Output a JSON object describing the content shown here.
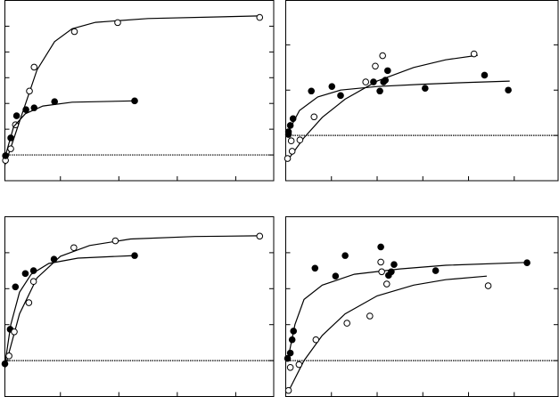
{
  "chart_data": [
    {
      "type": "scatter",
      "xlim": [
        0.05,
        4.65
      ],
      "ylim": [
        0,
        7
      ],
      "xticks": [
        1,
        2,
        3,
        4
      ],
      "yticks": [
        1,
        2,
        3,
        4,
        5,
        6
      ],
      "baseline": 1,
      "series": [
        {
          "marker": "open",
          "color": "#000000",
          "x": [
            0.06,
            0.15,
            0.23,
            0.47,
            0.55,
            1.24,
            1.98,
            4.41
          ],
          "values": [
            0.79,
            1.24,
            2.17,
            3.48,
            4.41,
            5.79,
            6.14,
            6.34
          ],
          "fit_x": [
            0.05,
            0.3,
            0.6,
            0.9,
            1.2,
            1.6,
            2.5,
            4.4
          ],
          "fit_y": [
            0.6,
            2.3,
            4.3,
            5.4,
            5.9,
            6.15,
            6.3,
            6.4
          ]
        },
        {
          "marker": "filled",
          "color": "#000000",
          "x": [
            0.06,
            0.15,
            0.25,
            0.41,
            0.55,
            0.9,
            2.27
          ],
          "values": [
            0.97,
            1.66,
            2.52,
            2.76,
            2.83,
            3.07,
            3.1
          ],
          "fit_x": [
            0.05,
            0.2,
            0.4,
            0.7,
            1.2,
            2.27
          ],
          "fit_y": [
            0.9,
            2.1,
            2.6,
            2.9,
            3.05,
            3.1
          ]
        }
      ]
    },
    {
      "type": "scatter",
      "xlim": [
        0,
        5.96
      ],
      "ylim": [
        0,
        3.98
      ],
      "xticks": [
        1,
        2,
        3,
        4,
        5
      ],
      "yticks": [
        1,
        2,
        3
      ],
      "baseline": 1,
      "series": [
        {
          "marker": "filled",
          "color": "#000000",
          "x": [
            0.06,
            0.06,
            0.1,
            0.16,
            0.56,
            1.01,
            1.2,
            1.92,
            2.14,
            2.18,
            2.06,
            2.23,
            3.05,
            4.35,
            4.87
          ],
          "values": [
            1.08,
            1.02,
            1.22,
            1.37,
            1.98,
            2.08,
            1.88,
            2.18,
            2.18,
            2.22,
            1.98,
            2.43,
            2.04,
            2.33,
            2.0
          ],
          "fit_x": [
            0.04,
            0.3,
            0.7,
            1.2,
            2,
            3,
            4,
            4.9
          ],
          "fit_y": [
            1.05,
            1.55,
            1.85,
            2.0,
            2.08,
            2.13,
            2.17,
            2.2
          ]
        },
        {
          "marker": "open",
          "color": "#000000",
          "x": [
            0.04,
            0.14,
            0.12,
            0.31,
            0.62,
            1.75,
            1.96,
            2.12,
            4.12
          ],
          "values": [
            0.49,
            0.65,
            0.88,
            0.9,
            1.41,
            2.18,
            2.53,
            2.76,
            2.8
          ],
          "fit_x": [
            0.04,
            0.4,
            0.8,
            1.3,
            2,
            2.8,
            3.5,
            4.2
          ],
          "fit_y": [
            0.45,
            0.95,
            1.4,
            1.8,
            2.2,
            2.5,
            2.67,
            2.77
          ]
        }
      ]
    },
    {
      "type": "scatter",
      "xlim": [
        0.05,
        4.65
      ],
      "ylim": [
        0,
        5
      ],
      "xticks": [
        1,
        2,
        3,
        4
      ],
      "yticks": [
        1,
        2,
        3,
        4
      ],
      "baseline": 1,
      "series": [
        {
          "marker": "filled",
          "color": "#000000",
          "x": [
            0.05,
            0.14,
            0.23,
            0.4,
            0.54,
            0.89,
            2.27
          ],
          "values": [
            0.91,
            1.87,
            3.05,
            3.42,
            3.5,
            3.82,
            3.92
          ],
          "fit_x": [
            0.05,
            0.15,
            0.3,
            0.5,
            0.8,
            1.3,
            2.27
          ],
          "fit_y": [
            0.9,
            2.0,
            2.9,
            3.4,
            3.7,
            3.85,
            3.92
          ]
        },
        {
          "marker": "open",
          "color": "#000000",
          "x": [
            0.12,
            0.21,
            0.46,
            0.54,
            1.23,
            1.94,
            4.41
          ],
          "values": [
            1.13,
            1.8,
            2.61,
            3.2,
            4.14,
            4.33,
            4.46
          ],
          "fit_x": [
            0.05,
            0.3,
            0.6,
            1.0,
            1.5,
            2.2,
            3.3,
            4.4
          ],
          "fit_y": [
            0.8,
            2.3,
            3.3,
            3.9,
            4.2,
            4.38,
            4.45,
            4.47
          ]
        }
      ]
    },
    {
      "type": "scatter",
      "xlim": [
        0,
        5.96
      ],
      "ylim": [
        0,
        5
      ],
      "xticks": [
        1,
        2,
        3,
        4,
        5
      ],
      "yticks": [
        1,
        2,
        3,
        4
      ],
      "baseline": 1,
      "series": [
        {
          "marker": "filled",
          "color": "#000000",
          "x": [
            0.04,
            0.1,
            0.14,
            0.17,
            0.64,
            1.09,
            1.3,
            2.08,
            2.25,
            2.31,
            2.37,
            3.28,
            5.28
          ],
          "values": [
            1.06,
            1.21,
            1.58,
            1.82,
            3.57,
            3.35,
            3.92,
            4.16,
            3.37,
            3.47,
            3.67,
            3.5,
            3.72
          ],
          "fit_x": [
            0.04,
            0.2,
            0.4,
            0.8,
            1.5,
            2.5,
            3.5,
            5.28
          ],
          "fit_y": [
            1.0,
            2.0,
            2.7,
            3.1,
            3.4,
            3.55,
            3.65,
            3.73
          ]
        },
        {
          "marker": "open",
          "color": "#000000",
          "x": [
            0.06,
            0.1,
            0.29,
            0.66,
            1.34,
            1.84,
            2.08,
            2.1,
            2.21,
            4.43
          ],
          "values": [
            0.17,
            0.81,
            0.89,
            1.58,
            2.04,
            2.24,
            3.74,
            3.47,
            3.13,
            3.08
          ],
          "fit_x": [
            0.04,
            0.4,
            0.8,
            1.3,
            2,
            2.8,
            3.5,
            4.4
          ],
          "fit_y": [
            0.1,
            1.0,
            1.7,
            2.3,
            2.8,
            3.1,
            3.25,
            3.35
          ]
        }
      ]
    }
  ]
}
